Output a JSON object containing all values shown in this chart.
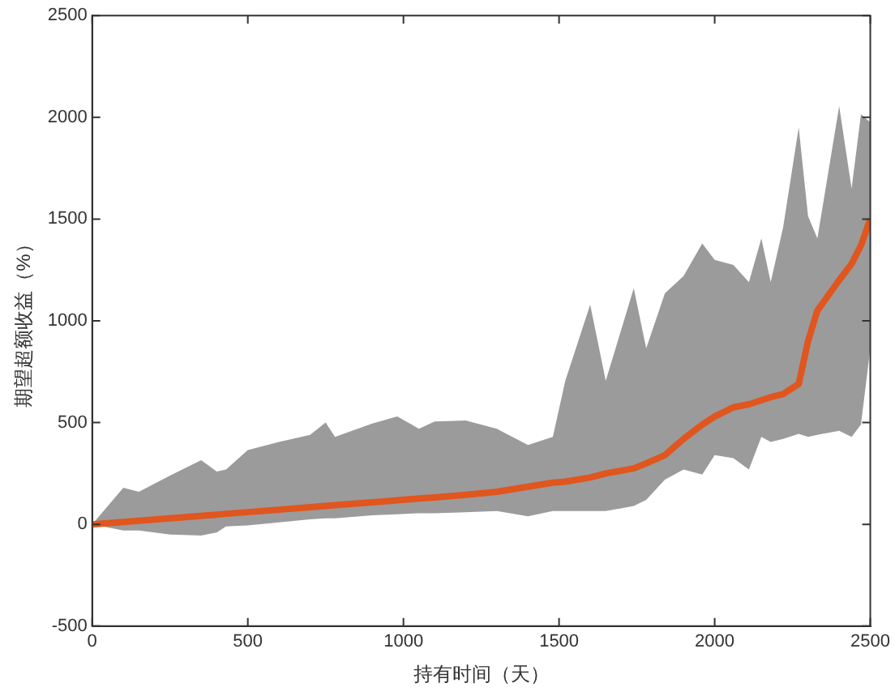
{
  "chart_data": {
    "type": "line",
    "xlabel": "持有时间（天）",
    "ylabel": "期望超额收益（%）",
    "xlim": [
      0,
      2500
    ],
    "xticks": [
      0,
      500,
      1000,
      1500,
      2000,
      2500
    ],
    "ylim": [
      -500,
      2500
    ],
    "yticks": [
      -500,
      0,
      500,
      1000,
      1500,
      2000,
      2500
    ],
    "grid": false,
    "legend": false,
    "marker": "none",
    "line_style": "solid",
    "series": [
      {
        "color": "#e0561e",
        "x": [
          0,
          100,
          150,
          250,
          350,
          400,
          430,
          500,
          600,
          700,
          750,
          780,
          900,
          980,
          1050,
          1100,
          1200,
          1300,
          1400,
          1480,
          1520,
          1600,
          1650,
          1740,
          1780,
          1840,
          1900,
          1960,
          2000,
          2060,
          2110,
          2150,
          2180,
          2220,
          2270,
          2300,
          2330,
          2400,
          2440,
          2470,
          2500
        ],
        "values": [
          0,
          12,
          18,
          30,
          42,
          48,
          52,
          60,
          72,
          84,
          90,
          94,
          108,
          118,
          127,
          132,
          145,
          160,
          185,
          205,
          210,
          230,
          250,
          275,
          300,
          340,
          420,
          490,
          530,
          575,
          590,
          610,
          625,
          640,
          690,
          900,
          1050,
          1200,
          1280,
          1370,
          1500
        ],
        "upper": [
          0,
          180,
          160,
          240,
          315,
          260,
          270,
          365,
          405,
          440,
          500,
          430,
          495,
          530,
          470,
          505,
          510,
          470,
          390,
          430,
          705,
          1080,
          705,
          1160,
          865,
          1135,
          1220,
          1380,
          1300,
          1275,
          1190,
          1405,
          1190,
          1460,
          1950,
          1515,
          1405,
          2055,
          1650,
          2015,
          1975
        ],
        "lower": [
          0,
          -30,
          -30,
          -50,
          -55,
          -40,
          -10,
          -5,
          10,
          25,
          30,
          30,
          45,
          50,
          55,
          55,
          60,
          65,
          40,
          65,
          65,
          65,
          65,
          90,
          120,
          220,
          270,
          245,
          340,
          325,
          270,
          430,
          405,
          420,
          445,
          430,
          440,
          460,
          430,
          490,
          865
        ]
      }
    ]
  }
}
